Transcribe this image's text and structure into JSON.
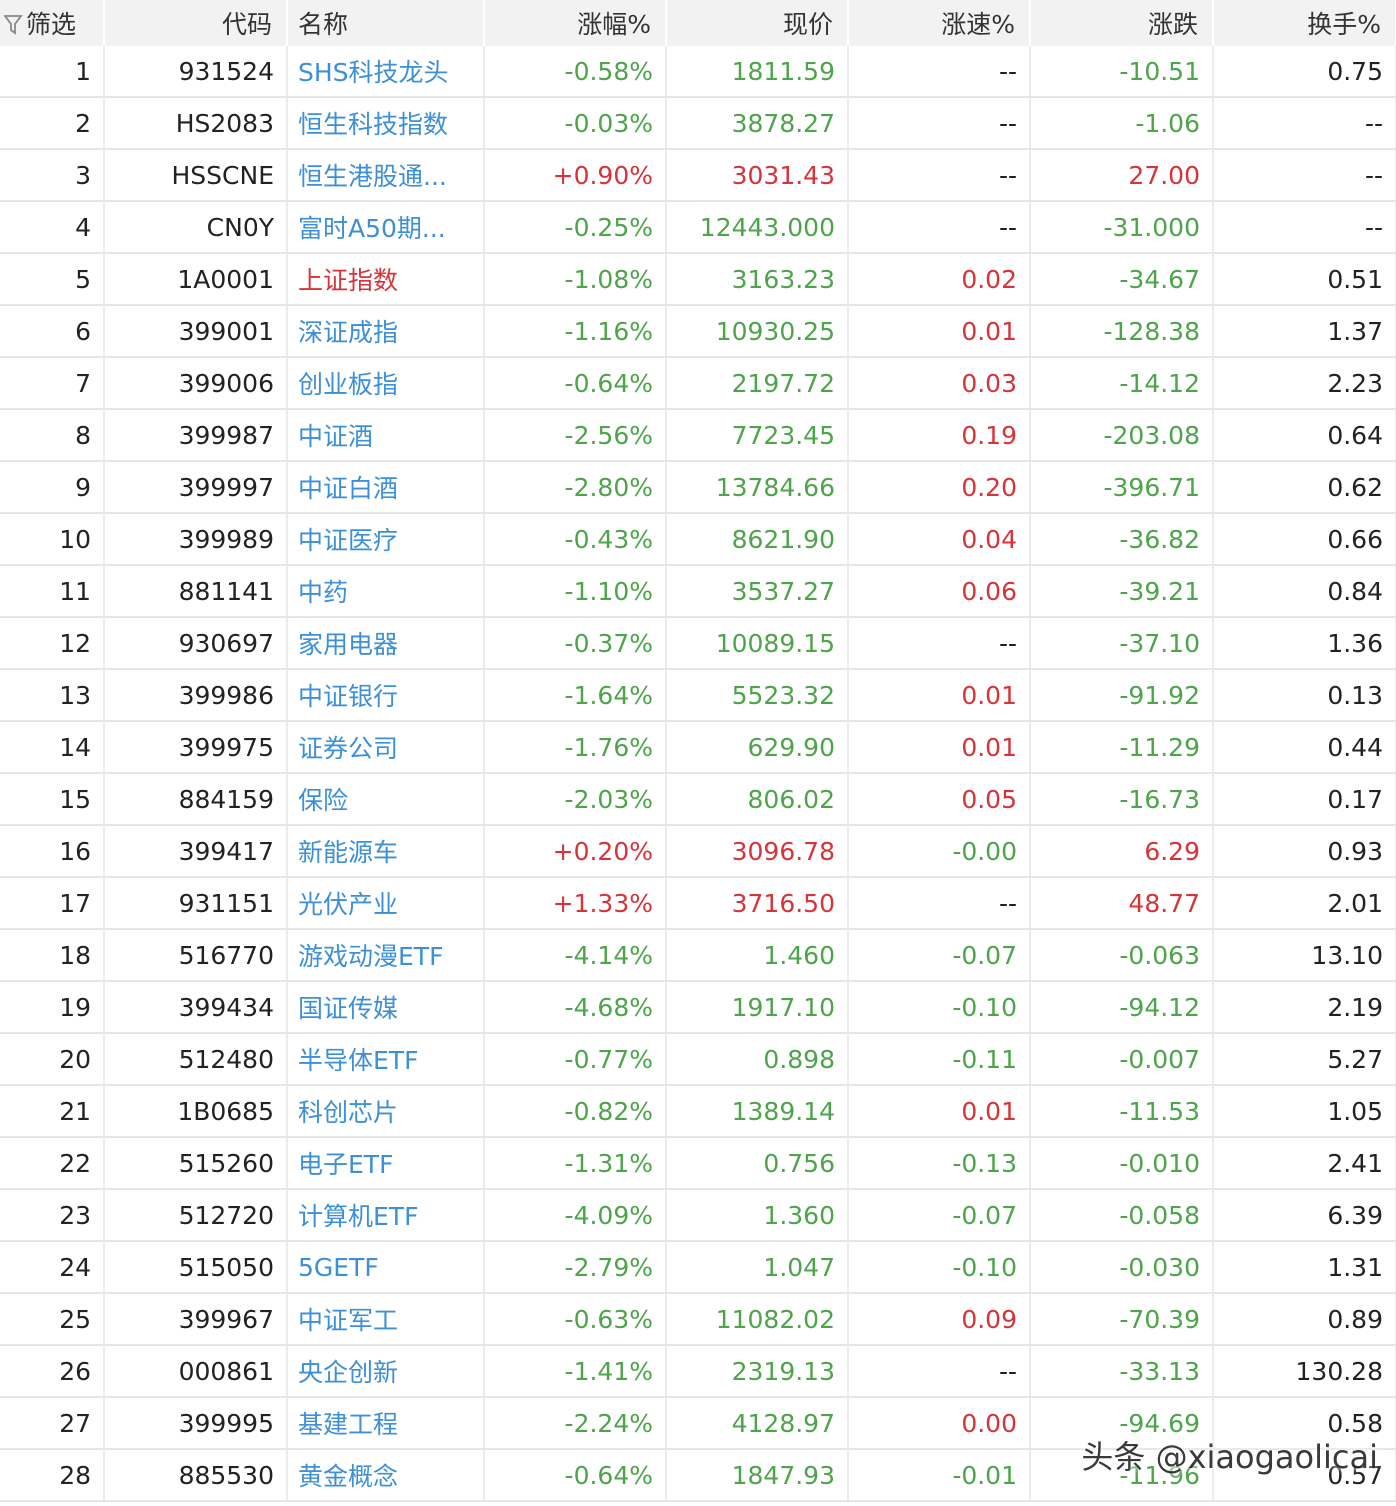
{
  "header": {
    "filter_label": "筛选",
    "code": "代码",
    "name": "名称",
    "change_pct": "涨幅%",
    "price": "现价",
    "speed_pct": "涨速%",
    "change": "涨跌",
    "turnover_pct": "换手%"
  },
  "colors": {
    "up": "#d7333a",
    "down": "#4ea44a",
    "link": "#3d8fd8",
    "header_bg": "#f2f2f2"
  },
  "rows": [
    {
      "n": "1",
      "code": "931524",
      "name": "SHS科技龙头",
      "name_dir": "",
      "pct": "-0.58%",
      "pct_dir": "down",
      "price": "1811.59",
      "price_dir": "down",
      "speed": "--",
      "speed_dir": "flat",
      "chg": "-10.51",
      "chg_dir": "down",
      "turn": "0.75"
    },
    {
      "n": "2",
      "code": "HS2083",
      "name": "恒生科技指数",
      "name_dir": "",
      "pct": "-0.03%",
      "pct_dir": "down",
      "price": "3878.27",
      "price_dir": "down",
      "speed": "--",
      "speed_dir": "flat",
      "chg": "-1.06",
      "chg_dir": "down",
      "turn": "--"
    },
    {
      "n": "3",
      "code": "HSSCNE",
      "name": "恒生港股通...",
      "name_dir": "",
      "pct": "+0.90%",
      "pct_dir": "up",
      "price": "3031.43",
      "price_dir": "up",
      "speed": "--",
      "speed_dir": "flat",
      "chg": "27.00",
      "chg_dir": "up",
      "turn": "--"
    },
    {
      "n": "4",
      "code": "CN0Y",
      "name": "富时A50期...",
      "name_dir": "",
      "pct": "-0.25%",
      "pct_dir": "down",
      "price": "12443.000",
      "price_dir": "down",
      "speed": "--",
      "speed_dir": "flat",
      "chg": "-31.000",
      "chg_dir": "down",
      "turn": "--"
    },
    {
      "n": "5",
      "code": "1A0001",
      "name": "上证指数",
      "name_dir": "red",
      "pct": "-1.08%",
      "pct_dir": "down",
      "price": "3163.23",
      "price_dir": "down",
      "speed": "0.02",
      "speed_dir": "up",
      "chg": "-34.67",
      "chg_dir": "down",
      "turn": "0.51"
    },
    {
      "n": "6",
      "code": "399001",
      "name": "深证成指",
      "name_dir": "",
      "pct": "-1.16%",
      "pct_dir": "down",
      "price": "10930.25",
      "price_dir": "down",
      "speed": "0.01",
      "speed_dir": "up",
      "chg": "-128.38",
      "chg_dir": "down",
      "turn": "1.37"
    },
    {
      "n": "7",
      "code": "399006",
      "name": "创业板指",
      "name_dir": "",
      "pct": "-0.64%",
      "pct_dir": "down",
      "price": "2197.72",
      "price_dir": "down",
      "speed": "0.03",
      "speed_dir": "up",
      "chg": "-14.12",
      "chg_dir": "down",
      "turn": "2.23"
    },
    {
      "n": "8",
      "code": "399987",
      "name": "中证酒",
      "name_dir": "",
      "pct": "-2.56%",
      "pct_dir": "down",
      "price": "7723.45",
      "price_dir": "down",
      "speed": "0.19",
      "speed_dir": "up",
      "chg": "-203.08",
      "chg_dir": "down",
      "turn": "0.64"
    },
    {
      "n": "9",
      "code": "399997",
      "name": "中证白酒",
      "name_dir": "",
      "pct": "-2.80%",
      "pct_dir": "down",
      "price": "13784.66",
      "price_dir": "down",
      "speed": "0.20",
      "speed_dir": "up",
      "chg": "-396.71",
      "chg_dir": "down",
      "turn": "0.62"
    },
    {
      "n": "10",
      "code": "399989",
      "name": "中证医疗",
      "name_dir": "",
      "pct": "-0.43%",
      "pct_dir": "down",
      "price": "8621.90",
      "price_dir": "down",
      "speed": "0.04",
      "speed_dir": "up",
      "chg": "-36.82",
      "chg_dir": "down",
      "turn": "0.66"
    },
    {
      "n": "11",
      "code": "881141",
      "name": "中药",
      "name_dir": "",
      "pct": "-1.10%",
      "pct_dir": "down",
      "price": "3537.27",
      "price_dir": "down",
      "speed": "0.06",
      "speed_dir": "up",
      "chg": "-39.21",
      "chg_dir": "down",
      "turn": "0.84"
    },
    {
      "n": "12",
      "code": "930697",
      "name": "家用电器",
      "name_dir": "",
      "pct": "-0.37%",
      "pct_dir": "down",
      "price": "10089.15",
      "price_dir": "down",
      "speed": "--",
      "speed_dir": "flat",
      "chg": "-37.10",
      "chg_dir": "down",
      "turn": "1.36"
    },
    {
      "n": "13",
      "code": "399986",
      "name": "中证银行",
      "name_dir": "",
      "pct": "-1.64%",
      "pct_dir": "down",
      "price": "5523.32",
      "price_dir": "down",
      "speed": "0.01",
      "speed_dir": "up",
      "chg": "-91.92",
      "chg_dir": "down",
      "turn": "0.13"
    },
    {
      "n": "14",
      "code": "399975",
      "name": "证券公司",
      "name_dir": "",
      "pct": "-1.76%",
      "pct_dir": "down",
      "price": "629.90",
      "price_dir": "down",
      "speed": "0.01",
      "speed_dir": "up",
      "chg": "-11.29",
      "chg_dir": "down",
      "turn": "0.44"
    },
    {
      "n": "15",
      "code": "884159",
      "name": "保险",
      "name_dir": "",
      "pct": "-2.03%",
      "pct_dir": "down",
      "price": "806.02",
      "price_dir": "down",
      "speed": "0.05",
      "speed_dir": "up",
      "chg": "-16.73",
      "chg_dir": "down",
      "turn": "0.17"
    },
    {
      "n": "16",
      "code": "399417",
      "name": "新能源车",
      "name_dir": "",
      "pct": "+0.20%",
      "pct_dir": "up",
      "price": "3096.78",
      "price_dir": "up",
      "speed": "-0.00",
      "speed_dir": "down",
      "chg": "6.29",
      "chg_dir": "up",
      "turn": "0.93"
    },
    {
      "n": "17",
      "code": "931151",
      "name": "光伏产业",
      "name_dir": "",
      "pct": "+1.33%",
      "pct_dir": "up",
      "price": "3716.50",
      "price_dir": "up",
      "speed": "--",
      "speed_dir": "flat",
      "chg": "48.77",
      "chg_dir": "up",
      "turn": "2.01"
    },
    {
      "n": "18",
      "code": "516770",
      "name": "游戏动漫ETF",
      "name_dir": "",
      "pct": "-4.14%",
      "pct_dir": "down",
      "price": "1.460",
      "price_dir": "down",
      "speed": "-0.07",
      "speed_dir": "down",
      "chg": "-0.063",
      "chg_dir": "down",
      "turn": "13.10"
    },
    {
      "n": "19",
      "code": "399434",
      "name": "国证传媒",
      "name_dir": "",
      "pct": "-4.68%",
      "pct_dir": "down",
      "price": "1917.10",
      "price_dir": "down",
      "speed": "-0.10",
      "speed_dir": "down",
      "chg": "-94.12",
      "chg_dir": "down",
      "turn": "2.19"
    },
    {
      "n": "20",
      "code": "512480",
      "name": "半导体ETF",
      "name_dir": "",
      "pct": "-0.77%",
      "pct_dir": "down",
      "price": "0.898",
      "price_dir": "down",
      "speed": "-0.11",
      "speed_dir": "down",
      "chg": "-0.007",
      "chg_dir": "down",
      "turn": "5.27"
    },
    {
      "n": "21",
      "code": "1B0685",
      "name": "科创芯片",
      "name_dir": "",
      "pct": "-0.82%",
      "pct_dir": "down",
      "price": "1389.14",
      "price_dir": "down",
      "speed": "0.01",
      "speed_dir": "up",
      "chg": "-11.53",
      "chg_dir": "down",
      "turn": "1.05"
    },
    {
      "n": "22",
      "code": "515260",
      "name": "电子ETF",
      "name_dir": "",
      "pct": "-1.31%",
      "pct_dir": "down",
      "price": "0.756",
      "price_dir": "down",
      "speed": "-0.13",
      "speed_dir": "down",
      "chg": "-0.010",
      "chg_dir": "down",
      "turn": "2.41"
    },
    {
      "n": "23",
      "code": "512720",
      "name": "计算机ETF",
      "name_dir": "",
      "pct": "-4.09%",
      "pct_dir": "down",
      "price": "1.360",
      "price_dir": "down",
      "speed": "-0.07",
      "speed_dir": "down",
      "chg": "-0.058",
      "chg_dir": "down",
      "turn": "6.39"
    },
    {
      "n": "24",
      "code": "515050",
      "name": "5GETF",
      "name_dir": "",
      "pct": "-2.79%",
      "pct_dir": "down",
      "price": "1.047",
      "price_dir": "down",
      "speed": "-0.10",
      "speed_dir": "down",
      "chg": "-0.030",
      "chg_dir": "down",
      "turn": "1.31"
    },
    {
      "n": "25",
      "code": "399967",
      "name": "中证军工",
      "name_dir": "",
      "pct": "-0.63%",
      "pct_dir": "down",
      "price": "11082.02",
      "price_dir": "down",
      "speed": "0.09",
      "speed_dir": "up",
      "chg": "-70.39",
      "chg_dir": "down",
      "turn": "0.89"
    },
    {
      "n": "26",
      "code": "000861",
      "name": "央企创新",
      "name_dir": "",
      "pct": "-1.41%",
      "pct_dir": "down",
      "price": "2319.13",
      "price_dir": "down",
      "speed": "--",
      "speed_dir": "flat",
      "chg": "-33.13",
      "chg_dir": "down",
      "turn": "130.28"
    },
    {
      "n": "27",
      "code": "399995",
      "name": "基建工程",
      "name_dir": "",
      "pct": "-2.24%",
      "pct_dir": "down",
      "price": "4128.97",
      "price_dir": "down",
      "speed": "0.00",
      "speed_dir": "up",
      "chg": "-94.69",
      "chg_dir": "down",
      "turn": "0.58"
    },
    {
      "n": "28",
      "code": "885530",
      "name": "黄金概念",
      "name_dir": "",
      "pct": "-0.64%",
      "pct_dir": "down",
      "price": "1847.93",
      "price_dir": "down",
      "speed": "-0.01",
      "speed_dir": "down",
      "chg": "-11.96",
      "chg_dir": "down",
      "turn": "0.57"
    }
  ],
  "watermark": "头条 @xiaogaolicai"
}
